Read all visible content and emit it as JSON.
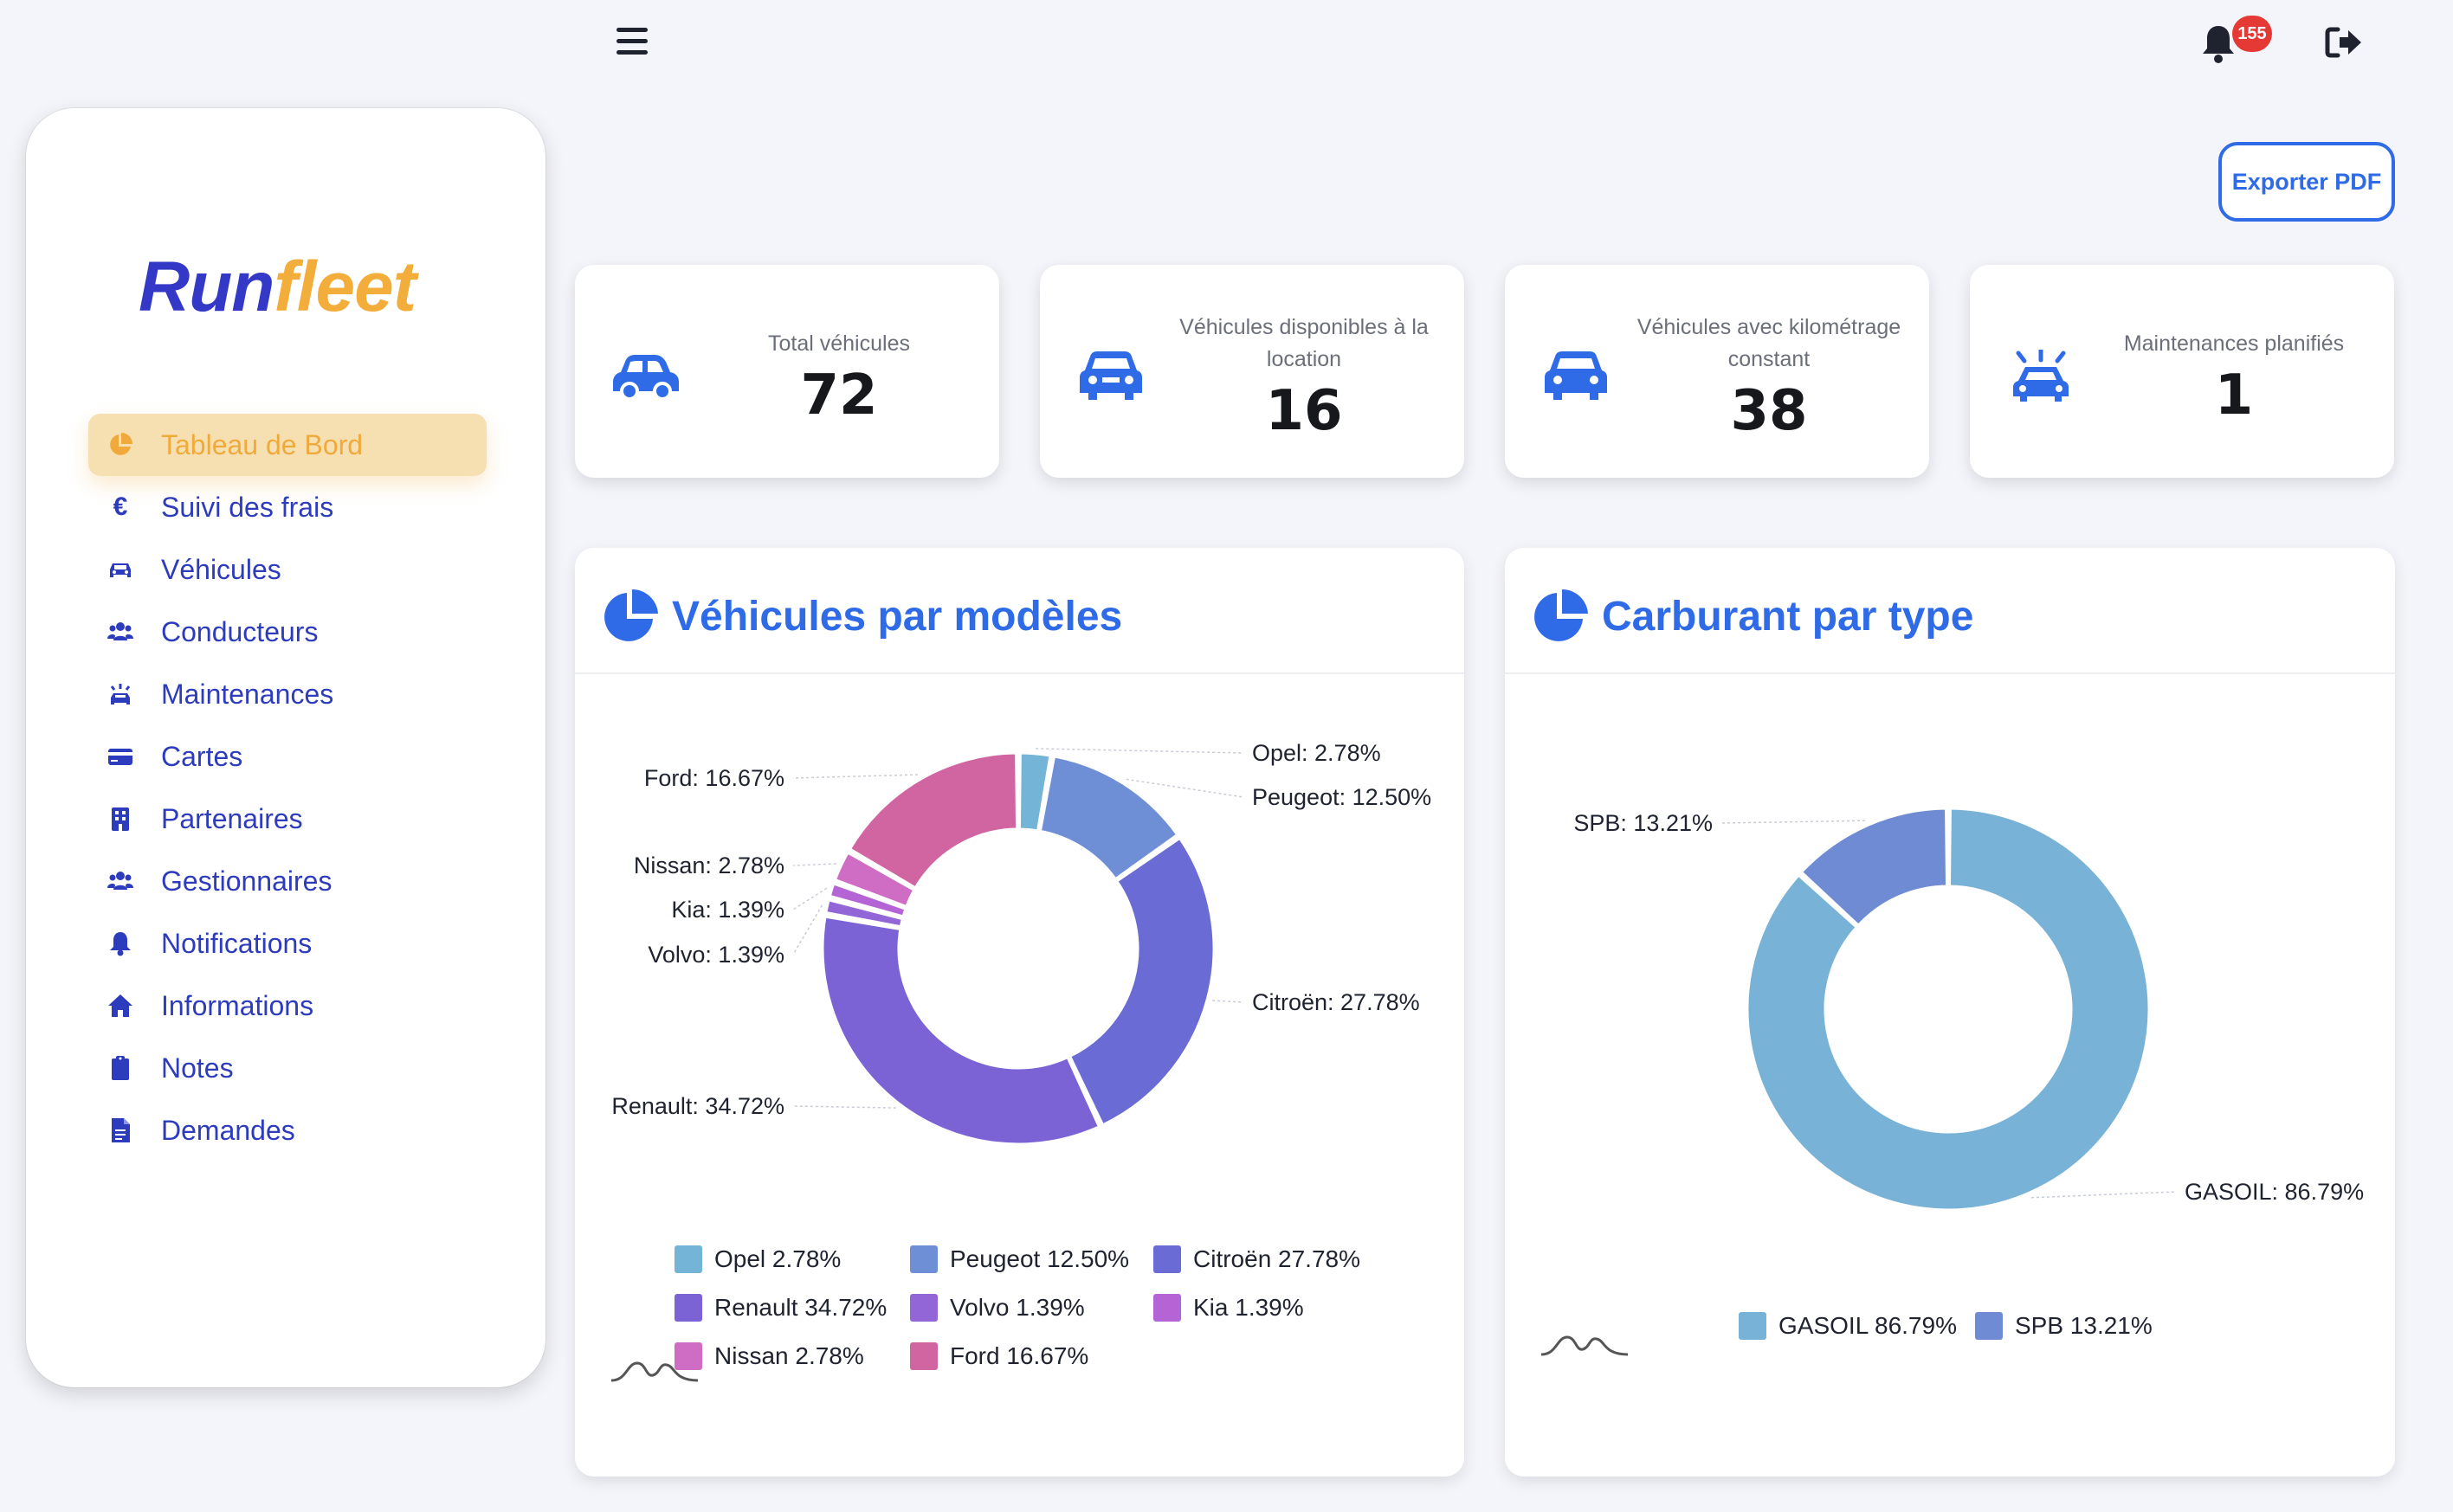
{
  "header": {
    "notification_count": "155"
  },
  "logo": {
    "part1": "Run",
    "part2": "fleet"
  },
  "sidebar": {
    "items": [
      {
        "label": "Tableau de Bord",
        "icon": "pie-chart-icon",
        "active": true
      },
      {
        "label": "Suivi des frais",
        "icon": "euro-icon"
      },
      {
        "label": "Véhicules",
        "icon": "car-icon"
      },
      {
        "label": "Conducteurs",
        "icon": "users-icon"
      },
      {
        "label": "Maintenances",
        "icon": "car-alert-icon"
      },
      {
        "label": "Cartes",
        "icon": "credit-card-icon"
      },
      {
        "label": "Partenaires",
        "icon": "building-icon"
      },
      {
        "label": "Gestionnaires",
        "icon": "users-icon"
      },
      {
        "label": "Notifications",
        "icon": "bell-icon"
      },
      {
        "label": "Informations",
        "icon": "home-icon"
      },
      {
        "label": "Notes",
        "icon": "clipboard-icon"
      },
      {
        "label": "Demandes",
        "icon": "file-icon"
      }
    ]
  },
  "toolbar": {
    "export_label": "Exporter PDF"
  },
  "stats": [
    {
      "label": "Total véhicules",
      "value": "72",
      "icon": "car-side-icon"
    },
    {
      "label": "Véhicules disponibles à la location",
      "value": "16",
      "icon": "car-front-icon"
    },
    {
      "label": "Véhicules avec kilométrage constant",
      "value": "38",
      "icon": "car-icon"
    },
    {
      "label": "Maintenances planifiés",
      "value": "1",
      "icon": "car-alert-icon"
    }
  ],
  "colors": {
    "accent": "#2f6be6",
    "sidebar_text": "#2d3bbd",
    "active_bg": "#f6e0b2",
    "active_text": "#f0aa3b"
  },
  "chart_data": [
    {
      "type": "pie",
      "title": "Véhicules par modèles",
      "donut": true,
      "categories": [
        "Opel",
        "Peugeot",
        "Citroën",
        "Renault",
        "Volvo",
        "Kia",
        "Nissan",
        "Ford"
      ],
      "values": [
        2.78,
        12.5,
        27.78,
        34.72,
        1.39,
        1.39,
        2.78,
        16.67
      ],
      "callouts": [
        "Opel: 2.78%",
        "Peugeot: 12.50%",
        "Citroën: 27.78%",
        "Renault: 34.72%",
        "Volvo: 1.39%",
        "Kia: 1.39%",
        "Nissan: 2.78%",
        "Ford: 16.67%"
      ],
      "legend": [
        "Opel 2.78%",
        "Peugeot 12.50%",
        "Citroën 27.78%",
        "Renault 34.72%",
        "Volvo 1.39%",
        "Kia 1.39%",
        "Nissan 2.78%",
        "Ford 16.67%"
      ],
      "colors": [
        "#74b4d6",
        "#6e8fd6",
        "#6a6bd4",
        "#7b63d6",
        "#9366d8",
        "#b464d4",
        "#cf6cc4",
        "#d065a2"
      ],
      "legend_position": "bottom"
    },
    {
      "type": "pie",
      "title": "Carburant par type",
      "donut": true,
      "categories": [
        "GASOIL",
        "SPB"
      ],
      "values": [
        86.79,
        13.21
      ],
      "callouts": [
        "GASOIL: 86.79%",
        "SPB: 13.21%"
      ],
      "legend": [
        "GASOIL 86.79%",
        "SPB 13.21%"
      ],
      "colors": [
        "#78b2d6",
        "#6f8bd4"
      ],
      "legend_position": "bottom"
    }
  ]
}
